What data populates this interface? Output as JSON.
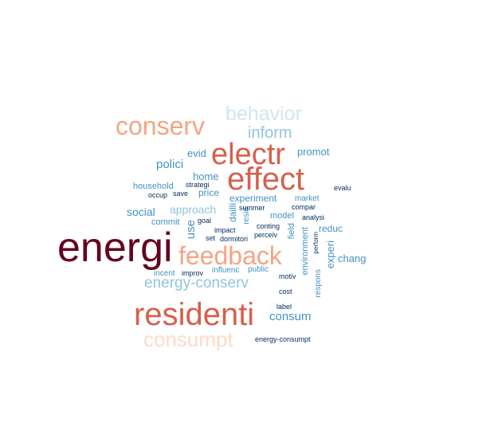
{
  "palette": {
    "darkred": "#67001f",
    "red": "#d6604d",
    "salmon": "#f4a582",
    "peach": "#fddbc7",
    "paleblue": "#d1e5f0",
    "lightblue": "#92c5de",
    "blue": "#4393c3",
    "navy": "#053061"
  },
  "words": [
    {
      "text": "energi",
      "color": "darkred"
    },
    {
      "text": "residenti",
      "color": "red"
    },
    {
      "text": "effect",
      "color": "red"
    },
    {
      "text": "electr",
      "color": "red"
    },
    {
      "text": "feedback",
      "color": "salmon"
    },
    {
      "text": "conserv",
      "color": "salmon"
    },
    {
      "text": "consumpt",
      "color": "peach"
    },
    {
      "text": "behavior",
      "color": "paleblue"
    },
    {
      "text": "energy-conserv",
      "color": "lightblue"
    },
    {
      "text": "inform",
      "color": "lightblue"
    },
    {
      "text": "consum",
      "color": "blue"
    },
    {
      "text": "polici",
      "color": "blue"
    },
    {
      "text": "social",
      "color": "blue"
    },
    {
      "text": "approach",
      "color": "lightblue"
    },
    {
      "text": "chang",
      "color": "blue"
    },
    {
      "text": "experi",
      "color": "blue"
    },
    {
      "text": "promot",
      "color": "blue"
    },
    {
      "text": "use",
      "color": "blue"
    },
    {
      "text": "evid",
      "color": "blue"
    },
    {
      "text": "home",
      "color": "blue"
    },
    {
      "text": "price",
      "color": "blue"
    },
    {
      "text": "experiment",
      "color": "blue"
    },
    {
      "text": "reduc",
      "color": "blue"
    },
    {
      "text": "household",
      "color": "blue"
    },
    {
      "text": "commit",
      "color": "blue"
    },
    {
      "text": "dailli",
      "color": "blue"
    },
    {
      "text": "environment",
      "color": "blue"
    },
    {
      "text": "field",
      "color": "blue"
    },
    {
      "text": "model",
      "color": "blue"
    },
    {
      "text": "market",
      "color": "blue"
    },
    {
      "text": "respons",
      "color": "blue"
    },
    {
      "text": "influenc",
      "color": "blue"
    },
    {
      "text": "public",
      "color": "blue"
    },
    {
      "text": "incent",
      "color": "blue"
    },
    {
      "text": "resid",
      "color": "blue"
    },
    {
      "text": "strategi",
      "color": "navy"
    },
    {
      "text": "save",
      "color": "navy"
    },
    {
      "text": "occup",
      "color": "navy"
    },
    {
      "text": "goal",
      "color": "navy"
    },
    {
      "text": "impact",
      "color": "navy"
    },
    {
      "text": "set",
      "color": "navy"
    },
    {
      "text": "dormitori",
      "color": "navy"
    },
    {
      "text": "summer",
      "color": "navy"
    },
    {
      "text": "conting",
      "color": "navy"
    },
    {
      "text": "perceiv",
      "color": "navy"
    },
    {
      "text": "compar",
      "color": "navy"
    },
    {
      "text": "analysi",
      "color": "navy"
    },
    {
      "text": "evalu",
      "color": "navy"
    },
    {
      "text": "perform",
      "color": "navy"
    },
    {
      "text": "improv",
      "color": "navy"
    },
    {
      "text": "motiv",
      "color": "navy"
    },
    {
      "text": "cost",
      "color": "navy"
    },
    {
      "text": "label",
      "color": "navy"
    },
    {
      "text": "energy-consumpt",
      "color": "navy"
    }
  ]
}
